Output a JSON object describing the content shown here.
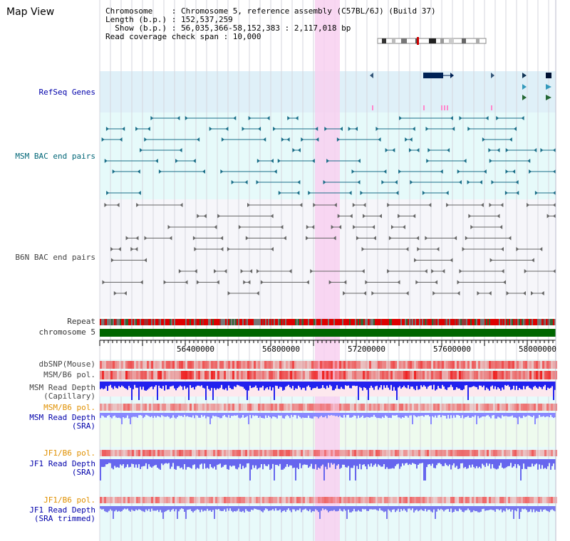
{
  "view_title": "Map View",
  "header": {
    "line1": "Chromosome    : Chromosome 5, reference assembly (C57BL/6J) (Build 37)",
    "line2": "Length (b.p.) : 152,537,259",
    "line3": "  Show (b.p.) : 56,035,366-58,152,383 : 2,117,018 bp",
    "line4": "Read coverage check span : 10,000"
  },
  "tracks": {
    "refseq": "RefSeq Genes",
    "msm_bac": "MSM BAC end pairs",
    "b6n_bac": "B6N BAC end pairs",
    "repeat": "Repeat",
    "chromosome": "chromosome 5",
    "dbsnp": "dbSNP(Mouse)",
    "msm_b6_pol": "MSM/B6 pol.",
    "msm_depth_cap_1": "MSM Read Depth",
    "msm_depth_cap_2": "(Capillary)",
    "msm_b6_pol_2": "MSM/B6 pol.",
    "msm_depth_sra_1": "MSM Read Depth",
    "msm_depth_sra_2": "(SRA)",
    "jf1_b6_pol": "JF1/B6 pol.",
    "jf1_depth_sra_1": "JF1 Read Depth",
    "jf1_depth_sra_2": "(SRA)",
    "jf1_b6_pol_2": "JF1/B6 pol.",
    "jf1_depth_trim_1": "JF1 Read Depth",
    "jf1_depth_trim_2": "(SRA trimmed)"
  },
  "axis": {
    "ticks": [
      "56400000",
      "56800000",
      "57200000",
      "57600000",
      "58000000"
    ]
  },
  "colors": {
    "refseq_bg": "#dff0f8",
    "msm_bg": "#e6fafa",
    "b6n_bg": "#f6f6fa",
    "highlight": "#f8d0f0",
    "repeat_red": "#dd0000",
    "chromosome_green": "#006600",
    "depth_blue": "#2222ee",
    "depth_light_blue": "#8888ff",
    "snp_red": "#ee4444"
  }
}
